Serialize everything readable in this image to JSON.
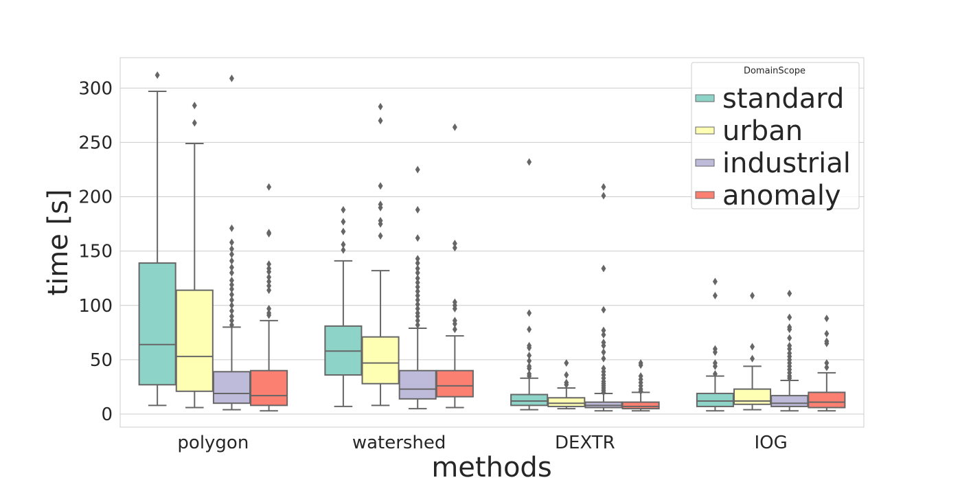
{
  "chart_data": {
    "type": "box",
    "xlabel": "methods",
    "ylabel": "time [s]",
    "ylim": [
      -12,
      328
    ],
    "yticks": [
      0,
      50,
      100,
      150,
      200,
      250,
      300
    ],
    "grid": true,
    "legend_placement": "top-right",
    "legend_title": "DomainScope",
    "categories": [
      "polygon",
      "watershed",
      "DEXTR",
      "IOG"
    ],
    "series": [
      {
        "name": "standard",
        "color": "#8dd3c7",
        "boxes": [
          {
            "whisker_low": 8,
            "q1": 27,
            "median": 64,
            "q3": 139,
            "whisker_high": 297,
            "outliers": [
              312
            ]
          },
          {
            "whisker_low": 7,
            "q1": 36,
            "median": 58,
            "q3": 81,
            "whisker_high": 141,
            "outliers": [
              151,
              156,
              168,
              177,
              188
            ]
          },
          {
            "whisker_low": 4,
            "q1": 8,
            "median": 12,
            "q3": 18,
            "whisker_high": 33,
            "outliers": [
              35,
              37,
              42,
              44,
              49,
              54,
              61,
              63,
              78,
              93,
              232
            ]
          },
          {
            "whisker_low": 3,
            "q1": 7,
            "median": 12,
            "q3": 19,
            "whisker_high": 35,
            "outliers": [
              37,
              44,
              47,
              57,
              60,
              109,
              122
            ]
          }
        ]
      },
      {
        "name": "urban",
        "color": "#ffffb3",
        "boxes": [
          {
            "whisker_low": 6,
            "q1": 21,
            "median": 53,
            "q3": 114,
            "whisker_high": 249,
            "outliers": [
              268,
              284
            ]
          },
          {
            "whisker_low": 8,
            "q1": 28,
            "median": 47,
            "q3": 71,
            "whisker_high": 132,
            "outliers": [
              164,
              175,
              178,
              190,
              193,
              210,
              270,
              283
            ]
          },
          {
            "whisker_low": 5,
            "q1": 7,
            "median": 10,
            "q3": 15,
            "whisker_high": 24,
            "outliers": [
              27,
              29,
              36,
              47
            ]
          },
          {
            "whisker_low": 4,
            "q1": 9,
            "median": 12,
            "q3": 23,
            "whisker_high": 44,
            "outliers": [
              51,
              62,
              109
            ]
          }
        ]
      },
      {
        "name": "industrial",
        "color": "#bebada",
        "boxes": [
          {
            "whisker_low": 4,
            "q1": 10,
            "median": 19,
            "q3": 39,
            "whisker_high": 80,
            "outliers": [
              82,
              86,
              90,
              95,
              100,
              105,
              110,
              115,
              119,
              123,
              130,
              135,
              141,
              147,
              152,
              158,
              171,
              309
            ]
          },
          {
            "whisker_low": 5,
            "q1": 14,
            "median": 23,
            "q3": 40,
            "whisker_high": 79,
            "outliers": [
              82,
              86,
              90,
              93,
              97,
              101,
              105,
              109,
              113,
              117,
              121,
              125,
              130,
              134,
              139,
              143,
              162,
              188,
              225
            ]
          },
          {
            "whisker_low": 3,
            "q1": 6,
            "median": 8,
            "q3": 11,
            "whisker_high": 19,
            "outliers": [
              20,
              22,
              24,
              26,
              28,
              30,
              33,
              36,
              39,
              42,
              51,
              57,
              63,
              66,
              73,
              77,
              96,
              134,
              201,
              209
            ]
          },
          {
            "whisker_low": 3,
            "q1": 7,
            "median": 10,
            "q3": 17,
            "whisker_high": 31,
            "outliers": [
              33,
              35,
              38,
              41,
              44,
              47,
              50,
              53,
              56,
              60,
              63,
              70,
              78,
              80,
              89,
              111
            ]
          }
        ]
      },
      {
        "name": "anomaly",
        "color": "#fb8072",
        "boxes": [
          {
            "whisker_low": 3,
            "q1": 8,
            "median": 17,
            "q3": 40,
            "whisker_high": 86,
            "outliers": [
              91,
              93,
              97,
              114,
              118,
              122,
              126,
              131,
              134,
              138,
              166,
              167,
              209
            ]
          },
          {
            "whisker_low": 6,
            "q1": 16,
            "median": 26,
            "q3": 40,
            "whisker_high": 72,
            "outliers": [
              78,
              83,
              86,
              97,
              100,
              103,
              153,
              157,
              264
            ]
          },
          {
            "whisker_low": 3,
            "q1": 5,
            "median": 7,
            "q3": 11,
            "whisker_high": 20,
            "outliers": [
              21,
              23,
              26,
              29,
              32,
              35,
              45,
              47
            ]
          },
          {
            "whisker_low": 3,
            "q1": 6,
            "median": 11,
            "q3": 20,
            "whisker_high": 38,
            "outliers": [
              43,
              47,
              65,
              67,
              74,
              88
            ]
          }
        ]
      }
    ]
  }
}
